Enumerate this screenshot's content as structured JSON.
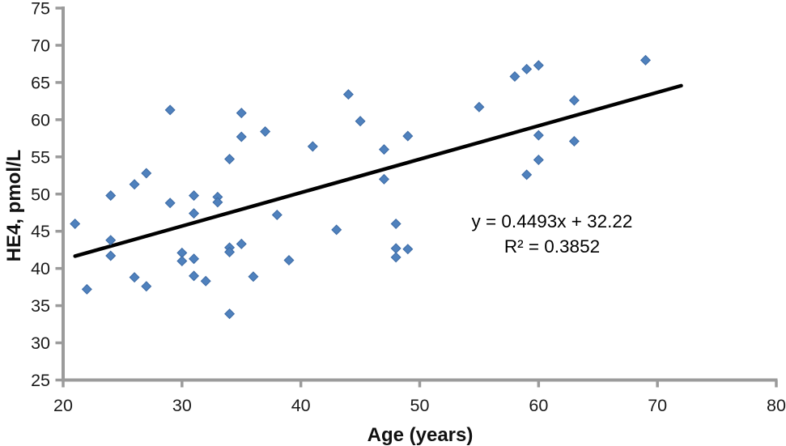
{
  "chart_data": {
    "type": "scatter",
    "title": "",
    "xlabel": "Age (years)",
    "ylabel": "HE4, pmol/L",
    "xlim": [
      20,
      80
    ],
    "ylim": [
      25,
      75
    ],
    "xticks": [
      20,
      30,
      40,
      50,
      60,
      70,
      80
    ],
    "yticks": [
      25,
      30,
      35,
      40,
      45,
      50,
      55,
      60,
      65,
      70,
      75
    ],
    "grid": false,
    "legend": "none",
    "marker": "diamond",
    "points": [
      [
        21,
        46.0
      ],
      [
        22,
        37.2
      ],
      [
        24,
        49.8
      ],
      [
        24,
        43.8
      ],
      [
        24,
        41.7
      ],
      [
        26,
        51.3
      ],
      [
        26,
        38.8
      ],
      [
        27,
        52.8
      ],
      [
        27,
        37.6
      ],
      [
        29,
        61.3
      ],
      [
        29,
        48.8
      ],
      [
        30,
        42.1
      ],
      [
        30,
        41.0
      ],
      [
        31,
        49.8
      ],
      [
        31,
        47.4
      ],
      [
        31,
        41.3
      ],
      [
        31,
        39.0
      ],
      [
        32,
        38.3
      ],
      [
        33,
        49.6
      ],
      [
        33,
        48.9
      ],
      [
        34,
        54.7
      ],
      [
        34,
        42.8
      ],
      [
        34,
        42.2
      ],
      [
        34,
        33.9
      ],
      [
        35,
        60.9
      ],
      [
        35,
        57.7
      ],
      [
        35,
        43.3
      ],
      [
        36,
        38.9
      ],
      [
        37,
        58.4
      ],
      [
        38,
        47.2
      ],
      [
        39,
        41.1
      ],
      [
        41,
        56.4
      ],
      [
        43,
        45.2
      ],
      [
        44,
        63.4
      ],
      [
        45,
        59.8
      ],
      [
        47,
        56.0
      ],
      [
        47,
        52.0
      ],
      [
        48,
        46.0
      ],
      [
        48,
        42.7
      ],
      [
        48,
        41.5
      ],
      [
        49,
        57.8
      ],
      [
        49,
        42.6
      ],
      [
        55,
        61.7
      ],
      [
        58,
        65.8
      ],
      [
        59,
        66.8
      ],
      [
        59,
        52.6
      ],
      [
        60,
        67.3
      ],
      [
        60,
        57.9
      ],
      [
        60,
        54.6
      ],
      [
        63,
        62.6
      ],
      [
        63,
        57.1
      ],
      [
        69,
        68.0
      ]
    ],
    "trendline": {
      "label": "y = 0.4493x + 32.22",
      "r2_label": "R² = 0.3852",
      "slope": 0.4493,
      "intercept": 32.22,
      "x_start": 21,
      "x_end": 72
    },
    "colors": {
      "marker_fill": "#4f81bd",
      "marker_border": "#3d6ba5",
      "trendline": "#000000",
      "axis": "#9b9b9b",
      "tick_text": "#1a1a1a",
      "annotation_text": "#000000"
    }
  }
}
